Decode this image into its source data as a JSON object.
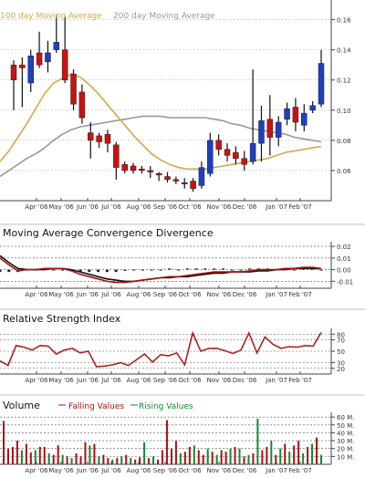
{
  "chart_data": [
    {
      "type": "candlestick",
      "legend": [
        {
          "name": "100 day Moving Average",
          "color": "#d4a94a"
        },
        {
          "name": "200 day Moving Average",
          "color": "#999999"
        }
      ],
      "x_ticks": [
        "Apr '06",
        "May '06",
        "Jun '06",
        "Jul '06",
        "Aug '06",
        "Sep '06",
        "Oct '06",
        "Nov '06",
        "Dec '06",
        "Jan '07",
        "Feb '07"
      ],
      "y_ticks": [
        "0.16",
        "0.14",
        "0.12",
        "0.10",
        "0.08",
        "0.06"
      ],
      "ylim": [
        0.04,
        0.17
      ],
      "colors": {
        "falling": "#cc1111",
        "rising": "#1f3fbf"
      },
      "candles": [
        {
          "i": 0,
          "o": 0.13,
          "c": 0.12,
          "h": 0.133,
          "l": 0.1
        },
        {
          "i": 1,
          "o": 0.13,
          "c": 0.128,
          "h": 0.135,
          "l": 0.102
        },
        {
          "i": 2,
          "o": 0.118,
          "c": 0.136,
          "h": 0.14,
          "l": 0.112
        },
        {
          "i": 3,
          "o": 0.138,
          "c": 0.13,
          "h": 0.152,
          "l": 0.128
        },
        {
          "i": 4,
          "o": 0.132,
          "c": 0.138,
          "h": 0.146,
          "l": 0.125
        },
        {
          "i": 5,
          "o": 0.14,
          "c": 0.145,
          "h": 0.163,
          "l": 0.138
        },
        {
          "i": 6,
          "o": 0.14,
          "c": 0.12,
          "h": 0.162,
          "l": 0.118
        },
        {
          "i": 7,
          "o": 0.124,
          "c": 0.104,
          "h": 0.127,
          "l": 0.1
        },
        {
          "i": 8,
          "o": 0.112,
          "c": 0.095,
          "h": 0.117,
          "l": 0.091
        },
        {
          "i": 9,
          "o": 0.085,
          "c": 0.08,
          "h": 0.092,
          "l": 0.068
        },
        {
          "i": 10,
          "o": 0.083,
          "c": 0.079,
          "h": 0.085,
          "l": 0.075
        },
        {
          "i": 11,
          "o": 0.084,
          "c": 0.078,
          "h": 0.087,
          "l": 0.072
        },
        {
          "i": 12,
          "o": 0.077,
          "c": 0.062,
          "h": 0.079,
          "l": 0.054
        },
        {
          "i": 13,
          "o": 0.064,
          "c": 0.06,
          "h": 0.066,
          "l": 0.058
        },
        {
          "i": 14,
          "o": 0.063,
          "c": 0.06,
          "h": 0.065,
          "l": 0.058
        },
        {
          "i": 15,
          "o": 0.061,
          "c": 0.06,
          "h": 0.063,
          "l": 0.058
        },
        {
          "i": 16,
          "o": 0.06,
          "c": 0.059,
          "h": 0.063,
          "l": 0.055
        },
        {
          "i": 17,
          "o": 0.058,
          "c": 0.057,
          "h": 0.059,
          "l": 0.053
        },
        {
          "i": 18,
          "o": 0.056,
          "c": 0.054,
          "h": 0.059,
          "l": 0.052
        },
        {
          "i": 19,
          "o": 0.054,
          "c": 0.053,
          "h": 0.056,
          "l": 0.051
        },
        {
          "i": 20,
          "o": 0.052,
          "c": 0.052,
          "h": 0.055,
          "l": 0.048
        },
        {
          "i": 21,
          "o": 0.053,
          "c": 0.048,
          "h": 0.055,
          "l": 0.046
        },
        {
          "i": 22,
          "o": 0.05,
          "c": 0.062,
          "h": 0.066,
          "l": 0.048
        },
        {
          "i": 23,
          "o": 0.058,
          "c": 0.08,
          "h": 0.085,
          "l": 0.056
        },
        {
          "i": 24,
          "o": 0.08,
          "c": 0.074,
          "h": 0.084,
          "l": 0.07
        },
        {
          "i": 25,
          "o": 0.074,
          "c": 0.07,
          "h": 0.078,
          "l": 0.066
        },
        {
          "i": 26,
          "o": 0.072,
          "c": 0.068,
          "h": 0.076,
          "l": 0.064
        },
        {
          "i": 27,
          "o": 0.068,
          "c": 0.064,
          "h": 0.073,
          "l": 0.06
        },
        {
          "i": 28,
          "o": 0.066,
          "c": 0.078,
          "h": 0.127,
          "l": 0.064
        },
        {
          "i": 29,
          "o": 0.078,
          "c": 0.093,
          "h": 0.103,
          "l": 0.066
        },
        {
          "i": 30,
          "o": 0.094,
          "c": 0.082,
          "h": 0.11,
          "l": 0.07
        },
        {
          "i": 31,
          "o": 0.082,
          "c": 0.092,
          "h": 0.096,
          "l": 0.076
        },
        {
          "i": 32,
          "o": 0.094,
          "c": 0.101,
          "h": 0.105,
          "l": 0.09
        },
        {
          "i": 33,
          "o": 0.102,
          "c": 0.092,
          "h": 0.108,
          "l": 0.086
        },
        {
          "i": 34,
          "o": 0.09,
          "c": 0.098,
          "h": 0.104,
          "l": 0.086
        },
        {
          "i": 35,
          "o": 0.1,
          "c": 0.103,
          "h": 0.106,
          "l": 0.098
        },
        {
          "i": 36,
          "o": 0.104,
          "c": 0.131,
          "h": 0.14,
          "l": 0.102
        }
      ],
      "ma100": [
        0.066,
        0.073,
        0.082,
        0.091,
        0.101,
        0.111,
        0.118,
        0.121,
        0.124,
        0.122,
        0.117,
        0.111,
        0.104,
        0.097,
        0.09,
        0.083,
        0.077,
        0.071,
        0.067,
        0.064,
        0.062,
        0.061,
        0.061,
        0.061,
        0.062,
        0.063,
        0.064,
        0.065,
        0.066,
        0.067,
        0.068,
        0.07,
        0.072,
        0.073,
        0.074,
        0.075,
        0.076
      ],
      "ma200": [
        0.056,
        0.06,
        0.064,
        0.068,
        0.071,
        0.075,
        0.08,
        0.084,
        0.087,
        0.089,
        0.09,
        0.091,
        0.092,
        0.093,
        0.094,
        0.095,
        0.096,
        0.096,
        0.096,
        0.095,
        0.095,
        0.095,
        0.095,
        0.095,
        0.094,
        0.093,
        0.091,
        0.09,
        0.088,
        0.087,
        0.086,
        0.085,
        0.084,
        0.082,
        0.081,
        0.08,
        0.079
      ]
    },
    {
      "type": "line",
      "title": "Moving Average Convergence Divergence",
      "y_ticks": [
        "0.02",
        "0.01",
        "0.00",
        "-0.01"
      ],
      "ylim": [
        -0.016,
        0.024
      ],
      "macd": [
        0.01,
        0.004,
        -0.001,
        0.0,
        0.0,
        0.001,
        0.001,
        0.001,
        -0.001,
        -0.004,
        -0.006,
        -0.008,
        -0.01,
        -0.011,
        -0.011,
        -0.01,
        -0.009,
        -0.008,
        -0.007,
        -0.006,
        -0.006,
        -0.005,
        -0.004,
        -0.003,
        -0.002,
        -0.002,
        -0.002,
        -0.002,
        -0.001,
        0.0,
        0.0,
        0.0,
        0.001,
        0.001,
        0.002,
        0.002,
        0.001
      ],
      "signal": [
        0.012,
        0.006,
        0.001,
        0.0,
        0.0,
        0.0,
        0.001,
        0.001,
        0.0,
        -0.002,
        -0.004,
        -0.006,
        -0.008,
        -0.009,
        -0.01,
        -0.01,
        -0.009,
        -0.008,
        -0.007,
        -0.007,
        -0.006,
        -0.006,
        -0.005,
        -0.004,
        -0.003,
        -0.003,
        -0.002,
        -0.002,
        -0.002,
        -0.001,
        -0.001,
        0.0,
        0.0,
        0.001,
        0.001,
        0.001,
        0.001
      ],
      "histogram": [
        -0.002,
        -0.002,
        -0.002,
        0.0,
        0.0,
        0.001,
        0.0,
        0.0,
        -0.001,
        -0.002,
        -0.002,
        -0.002,
        -0.002,
        -0.002,
        -0.001,
        0.0,
        0.0,
        0.0,
        0.0,
        0.001,
        0.0,
        0.001,
        0.001,
        0.001,
        0.001,
        0.001,
        0.0,
        0.0,
        0.001,
        0.001,
        0.001,
        0.0,
        0.001,
        0.0,
        0.001,
        0.001,
        0.0
      ]
    },
    {
      "type": "line",
      "title": "Relative Strength Index",
      "y_ticks": [
        "80",
        "70",
        "50",
        "30",
        "20"
      ],
      "ylim": [
        10,
        90
      ],
      "values": [
        33,
        25,
        60,
        57,
        52,
        60,
        59,
        45,
        52,
        55,
        47,
        50,
        23,
        24,
        26,
        30,
        25,
        35,
        45,
        31,
        44,
        42,
        47,
        26,
        82,
        50,
        55,
        55,
        51,
        46,
        52,
        82,
        47,
        75,
        62,
        55,
        58,
        57,
        60,
        59,
        83
      ]
    },
    {
      "type": "bar",
      "title": "Volume",
      "legend": [
        {
          "name": "Falling Values",
          "color": "#aa1111"
        },
        {
          "name": "Rising Values",
          "color": "#118833"
        }
      ],
      "y_ticks": [
        "60 M.",
        "50 M.",
        "40 M.",
        "30 M.",
        "20 M.",
        "10 M."
      ],
      "ylim": [
        0,
        66
      ],
      "values": [
        55,
        20,
        22,
        30,
        18,
        26,
        15,
        18,
        22,
        22,
        14,
        12,
        24,
        12,
        10,
        8,
        14,
        10,
        28,
        24,
        26,
        10,
        12,
        8,
        6,
        8,
        10,
        12,
        8,
        6,
        9,
        28,
        8,
        10,
        6,
        18,
        56,
        20,
        30,
        14,
        16,
        22,
        24,
        18,
        12,
        20,
        16,
        12,
        18,
        16,
        20,
        22,
        20,
        10,
        12,
        14,
        58,
        18,
        22,
        30,
        12,
        20,
        26,
        16,
        24,
        30,
        14,
        22,
        26,
        34,
        12
      ],
      "rising": [
        false,
        false,
        false,
        false,
        true,
        false,
        false,
        true,
        false,
        false,
        true,
        false,
        false,
        true,
        false,
        true,
        false,
        false,
        false,
        true,
        false,
        true,
        false,
        false,
        true,
        false,
        true,
        false,
        true,
        false,
        false,
        true,
        false,
        true,
        false,
        false,
        false,
        false,
        false,
        true,
        false,
        false,
        true,
        false,
        false,
        true,
        false,
        true,
        false,
        false,
        true,
        false,
        true,
        false,
        true,
        false,
        true,
        false,
        false,
        true,
        false,
        true,
        false,
        true,
        false,
        false,
        true,
        false,
        true,
        false,
        true
      ]
    }
  ]
}
